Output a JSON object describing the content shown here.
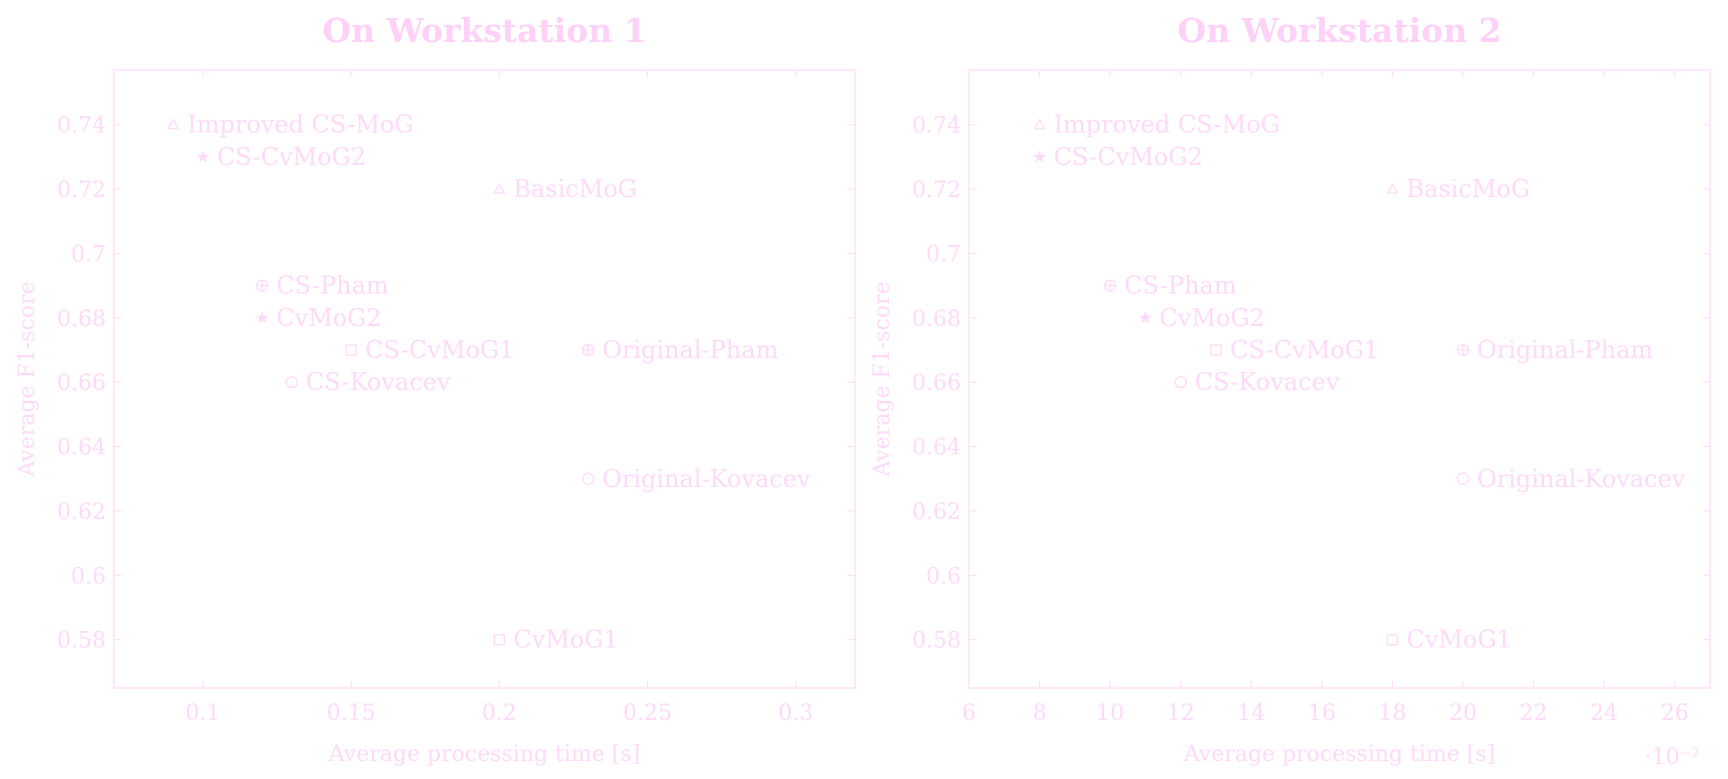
{
  "colors": {
    "ink": "#ffd9fa",
    "title": "#ffd0f8"
  },
  "chart_data": [
    {
      "type": "scatter",
      "title": "On Workstation 1",
      "xlabel": "Average processing time [s]",
      "ylabel": "Average F1-score",
      "xlim": [
        0.07,
        0.32
      ],
      "ylim": [
        0.565,
        0.757
      ],
      "grid": false,
      "x_ticks": [
        0.1,
        0.15,
        0.2,
        0.25,
        0.3
      ],
      "x_tick_labels": [
        "0.1",
        "0.15",
        "0.2",
        "0.25",
        "0.3"
      ],
      "y_ticks": [
        0.58,
        0.6,
        0.62,
        0.64,
        0.66,
        0.68,
        0.7,
        0.72,
        0.74
      ],
      "y_tick_labels": [
        "0.58",
        "0.6",
        "0.62",
        "0.64",
        "0.66",
        "0.68",
        "0.7",
        "0.72",
        "0.74"
      ],
      "x_scale_label": "",
      "points": [
        {
          "label": "Improved CS-MoG",
          "x": 0.09,
          "y": 0.74,
          "marker": "triangle"
        },
        {
          "label": "CS-CvMoG2",
          "x": 0.1,
          "y": 0.73,
          "marker": "star"
        },
        {
          "label": "BasicMoG",
          "x": 0.2,
          "y": 0.72,
          "marker": "triangle"
        },
        {
          "label": "CS-Pham",
          "x": 0.12,
          "y": 0.69,
          "marker": "oplus"
        },
        {
          "label": "CvMoG2",
          "x": 0.12,
          "y": 0.68,
          "marker": "star"
        },
        {
          "label": "CS-CvMoG1",
          "x": 0.15,
          "y": 0.67,
          "marker": "square"
        },
        {
          "label": "Original-Pham",
          "x": 0.23,
          "y": 0.67,
          "marker": "oplus"
        },
        {
          "label": "CS-Kovacev",
          "x": 0.13,
          "y": 0.66,
          "marker": "circle"
        },
        {
          "label": "Original-Kovacev",
          "x": 0.23,
          "y": 0.63,
          "marker": "circle"
        },
        {
          "label": "CvMoG1",
          "x": 0.2,
          "y": 0.58,
          "marker": "square"
        }
      ]
    },
    {
      "type": "scatter",
      "title": "On Workstation 2",
      "xlabel": "Average processing time [s]",
      "ylabel": "Average F1-score",
      "xlim": [
        6,
        27
      ],
      "ylim": [
        0.565,
        0.757
      ],
      "grid": false,
      "x_ticks": [
        6,
        8,
        10,
        12,
        14,
        16,
        18,
        20,
        22,
        24,
        26
      ],
      "x_tick_labels": [
        "6",
        "8",
        "10",
        "12",
        "14",
        "16",
        "18",
        "20",
        "22",
        "24",
        "26"
      ],
      "y_ticks": [
        0.58,
        0.6,
        0.62,
        0.64,
        0.66,
        0.68,
        0.7,
        0.72,
        0.74
      ],
      "y_tick_labels": [
        "0.58",
        "0.6",
        "0.62",
        "0.64",
        "0.66",
        "0.68",
        "0.7",
        "0.72",
        "0.74"
      ],
      "x_scale_label": "·10⁻²",
      "points": [
        {
          "label": "Improved CS-MoG",
          "x": 8,
          "y": 0.74,
          "marker": "triangle"
        },
        {
          "label": "CS-CvMoG2",
          "x": 8,
          "y": 0.73,
          "marker": "star"
        },
        {
          "label": "BasicMoG",
          "x": 18,
          "y": 0.72,
          "marker": "triangle"
        },
        {
          "label": "CS-Pham",
          "x": 10,
          "y": 0.69,
          "marker": "oplus"
        },
        {
          "label": "CvMoG2",
          "x": 11,
          "y": 0.68,
          "marker": "star"
        },
        {
          "label": "CS-CvMoG1",
          "x": 13,
          "y": 0.67,
          "marker": "square"
        },
        {
          "label": "Original-Pham",
          "x": 20,
          "y": 0.67,
          "marker": "oplus"
        },
        {
          "label": "CS-Kovacev",
          "x": 12,
          "y": 0.66,
          "marker": "circle"
        },
        {
          "label": "Original-Kovacev",
          "x": 20,
          "y": 0.63,
          "marker": "circle"
        },
        {
          "label": "CvMoG1",
          "x": 18,
          "y": 0.58,
          "marker": "square"
        }
      ]
    }
  ]
}
